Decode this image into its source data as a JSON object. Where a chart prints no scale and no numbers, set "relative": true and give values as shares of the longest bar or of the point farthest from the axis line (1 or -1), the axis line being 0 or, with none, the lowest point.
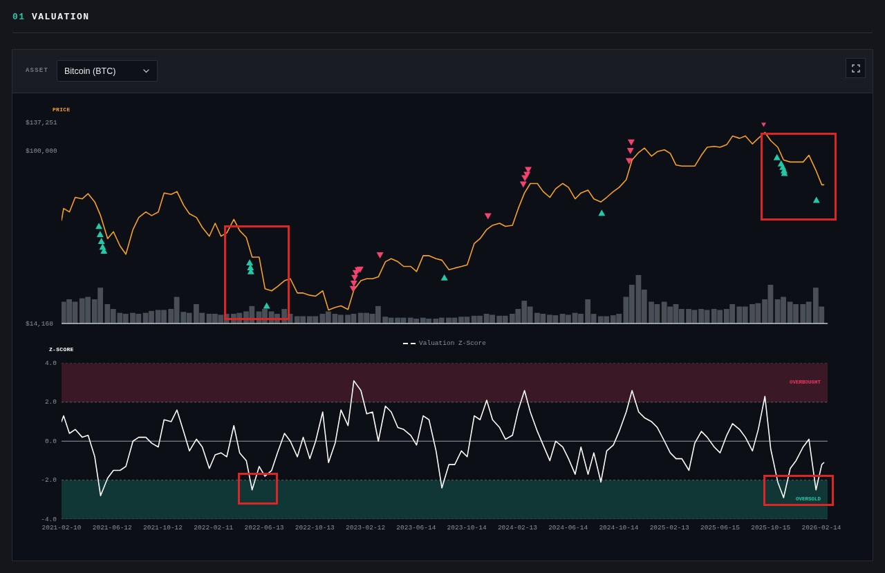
{
  "chart_data": [
    {
      "type": "line",
      "title": "01 VALUATION",
      "annotations": [
        "ASSET",
        "Bitcoin (BTC)"
      ],
      "ylabel": "PRICE",
      "log": true,
      "ylim": [
        14168,
        137251
      ],
      "yticks": [
        {
          "value": 14168,
          "label": "$14,168"
        },
        {
          "value": 100000,
          "label": "$100,000"
        },
        {
          "value": 137251,
          "label": "$137,251"
        }
      ],
      "xlim": [
        "2021-02-10",
        "2026-03-01"
      ],
      "tick_labels": "y",
      "x": [
        "2021-02-10",
        "2021-02-15",
        "2021-03-01",
        "2021-03-15",
        "2021-04-01",
        "2021-04-15",
        "2021-05-01",
        "2021-05-15",
        "2021-06-01",
        "2021-06-15",
        "2021-07-01",
        "2021-07-15",
        "2021-08-01",
        "2021-08-15",
        "2021-09-01",
        "2021-09-15",
        "2021-10-01",
        "2021-10-15",
        "2021-11-01",
        "2021-11-15",
        "2021-12-01",
        "2021-12-15",
        "2022-01-01",
        "2022-01-15",
        "2022-02-01",
        "2022-02-15",
        "2022-03-01",
        "2022-03-15",
        "2022-04-01",
        "2022-04-15",
        "2022-05-01",
        "2022-05-15",
        "2022-06-01",
        "2022-06-15",
        "2022-07-01",
        "2022-07-15",
        "2022-08-01",
        "2022-08-15",
        "2022-09-01",
        "2022-09-15",
        "2022-10-01",
        "2022-10-15",
        "2022-11-01",
        "2022-11-15",
        "2022-12-01",
        "2022-12-15",
        "2023-01-01",
        "2023-01-15",
        "2023-02-01",
        "2023-02-15",
        "2023-03-01",
        "2023-03-15",
        "2023-04-01",
        "2023-04-15",
        "2023-05-01",
        "2023-05-15",
        "2023-06-01",
        "2023-06-15",
        "2023-07-01",
        "2023-07-15",
        "2023-08-01",
        "2023-08-15",
        "2023-09-01",
        "2023-09-15",
        "2023-10-01",
        "2023-10-15",
        "2023-11-01",
        "2023-11-15",
        "2023-12-01",
        "2023-12-15",
        "2024-01-01",
        "2024-01-15",
        "2024-02-01",
        "2024-02-15",
        "2024-03-01",
        "2024-03-15",
        "2024-04-01",
        "2024-04-15",
        "2024-05-01",
        "2024-05-15",
        "2024-06-01",
        "2024-06-15",
        "2024-07-01",
        "2024-07-15",
        "2024-08-01",
        "2024-08-15",
        "2024-09-01",
        "2024-09-15",
        "2024-10-01",
        "2024-10-15",
        "2024-11-01",
        "2024-11-15",
        "2024-12-01",
        "2024-12-15",
        "2025-01-01",
        "2025-01-15",
        "2025-02-01",
        "2025-02-15",
        "2025-03-01",
        "2025-03-15",
        "2025-04-01",
        "2025-04-15",
        "2025-05-01",
        "2025-05-15",
        "2025-06-01",
        "2025-06-15",
        "2025-07-01",
        "2025-07-15",
        "2025-08-01",
        "2025-08-15",
        "2025-09-01",
        "2025-09-15",
        "2025-10-01",
        "2025-10-15",
        "2025-11-01",
        "2025-11-15",
        "2025-12-01",
        "2025-12-15",
        "2026-01-01",
        "2026-01-15",
        "2026-02-01",
        "2026-02-15",
        "2026-02-20"
      ],
      "series": [
        {
          "color": "#f7a226",
          "values": [
            45500,
            52000,
            50000,
            59000,
            58000,
            61500,
            56000,
            48000,
            37000,
            40000,
            34000,
            31000,
            41000,
            47000,
            50000,
            48000,
            50000,
            62000,
            61000,
            63000,
            54000,
            49000,
            47000,
            42000,
            38000,
            44000,
            38000,
            39500,
            46000,
            40500,
            37500,
            30000,
            30000,
            21000,
            20500,
            21500,
            23000,
            23500,
            20000,
            20000,
            19500,
            19300,
            20500,
            16500,
            17000,
            17300,
            16600,
            20700,
            23000,
            23500,
            23500,
            24000,
            28500,
            29500,
            28500,
            27000,
            27000,
            25500,
            30500,
            30500,
            29500,
            29000,
            26000,
            26500,
            27000,
            27500,
            35000,
            37000,
            41000,
            43000,
            44000,
            42500,
            43000,
            52000,
            62000,
            69000,
            69000,
            63000,
            59000,
            65000,
            69000,
            66000,
            58000,
            62000,
            64000,
            58000,
            56000,
            59000,
            63000,
            66000,
            72000,
            90000,
            98000,
            103000,
            94000,
            99000,
            101000,
            97000,
            85000,
            84000,
            84000,
            84000,
            95000,
            104000,
            105000,
            104000,
            107000,
            118000,
            115000,
            118000,
            108000,
            115000,
            123000,
            112000,
            104000,
            90000,
            88000,
            88000,
            88000,
            95000,
            80000,
            68000,
            68000
          ]
        },
        {
          "type": "scatter",
          "color": "#ef4470",
          "marker": "triangle-down",
          "x": [
            "2023-01-13",
            "2023-01-15",
            "2023-01-17",
            "2023-01-20",
            "2023-01-25",
            "2023-01-30",
            "2023-03-19",
            "2023-12-04",
            "2024-02-27",
            "2024-03-02",
            "2024-03-07",
            "2024-03-10",
            "2024-11-08",
            "2024-11-11",
            "2024-11-13",
            "2025-09-28"
          ],
          "values": [
            21000,
            22300,
            23800,
            25100,
            25900,
            26100,
            30700,
            47800,
            68400,
            73400,
            76300,
            80600,
            89100,
            100000,
            110000,
            136000
          ]
        },
        {
          "type": "scatter",
          "color": "#23c9a9",
          "marker": "triangle",
          "x": [
            "2021-05-11",
            "2021-05-14",
            "2021-05-17",
            "2021-05-20",
            "2021-05-23",
            "2022-05-09",
            "2022-05-11",
            "2022-05-12",
            "2022-06-19",
            "2023-08-21",
            "2024-09-03",
            "2025-10-30",
            "2025-11-09",
            "2025-11-13",
            "2025-11-16",
            "2025-11-17",
            "2026-02-02"
          ],
          "values": [
            42600,
            38800,
            35900,
            33700,
            32200,
            28200,
            26700,
            25500,
            17300,
            23800,
            49400,
            92700,
            86400,
            83100,
            79900,
            77500,
            57200
          ]
        }
      ]
    },
    {
      "type": "bar",
      "relative": true,
      "color": "#4a4e57",
      "xlim": [
        "2021-02-10",
        "2026-03-01"
      ],
      "tick_labels": false,
      "x": [
        "2021-02-15",
        "2021-03-01",
        "2021-03-15",
        "2021-04-01",
        "2021-04-15",
        "2021-05-01",
        "2021-05-15",
        "2021-06-01",
        "2021-06-15",
        "2021-07-01",
        "2021-07-15",
        "2021-08-01",
        "2021-08-15",
        "2021-09-01",
        "2021-09-15",
        "2021-10-01",
        "2021-10-15",
        "2021-11-01",
        "2021-11-15",
        "2021-12-01",
        "2021-12-15",
        "2022-01-01",
        "2022-01-15",
        "2022-02-01",
        "2022-02-15",
        "2022-03-01",
        "2022-03-15",
        "2022-04-01",
        "2022-04-15",
        "2022-05-01",
        "2022-05-15",
        "2022-06-01",
        "2022-06-15",
        "2022-07-01",
        "2022-07-15",
        "2022-08-01",
        "2022-08-15",
        "2022-09-01",
        "2022-09-15",
        "2022-10-01",
        "2022-10-15",
        "2022-11-01",
        "2022-11-15",
        "2022-12-01",
        "2022-12-15",
        "2023-01-01",
        "2023-01-15",
        "2023-02-01",
        "2023-02-15",
        "2023-03-01",
        "2023-03-15",
        "2023-04-01",
        "2023-04-15",
        "2023-05-01",
        "2023-05-15",
        "2023-06-01",
        "2023-06-15",
        "2023-07-01",
        "2023-07-15",
        "2023-08-01",
        "2023-08-15",
        "2023-09-01",
        "2023-09-15",
        "2023-10-01",
        "2023-10-15",
        "2023-11-01",
        "2023-11-15",
        "2023-12-01",
        "2023-12-15",
        "2024-01-01",
        "2024-01-15",
        "2024-02-01",
        "2024-02-15",
        "2024-03-01",
        "2024-03-15",
        "2024-04-01",
        "2024-04-15",
        "2024-05-01",
        "2024-05-15",
        "2024-06-01",
        "2024-06-15",
        "2024-07-01",
        "2024-07-15",
        "2024-08-01",
        "2024-08-15",
        "2024-09-01",
        "2024-09-15",
        "2024-10-01",
        "2024-10-15",
        "2024-11-01",
        "2024-11-15",
        "2024-12-01",
        "2024-12-15",
        "2025-01-01",
        "2025-01-15",
        "2025-02-01",
        "2025-02-15",
        "2025-03-01",
        "2025-03-15",
        "2025-04-01",
        "2025-04-15",
        "2025-05-01",
        "2025-05-15",
        "2025-06-01",
        "2025-06-15",
        "2025-07-01",
        "2025-07-15",
        "2025-08-01",
        "2025-08-15",
        "2025-09-01",
        "2025-09-15",
        "2025-10-01",
        "2025-10-15",
        "2025-11-01",
        "2025-11-15",
        "2025-12-01",
        "2025-12-15",
        "2026-01-01",
        "2026-01-15",
        "2026-02-01",
        "2026-02-15"
      ],
      "values": [
        0.45,
        0.5,
        0.45,
        0.52,
        0.55,
        0.5,
        0.74,
        0.4,
        0.3,
        0.22,
        0.2,
        0.22,
        0.2,
        0.22,
        0.26,
        0.28,
        0.28,
        0.3,
        0.55,
        0.24,
        0.22,
        0.4,
        0.22,
        0.2,
        0.2,
        0.18,
        0.2,
        0.2,
        0.22,
        0.25,
        0.36,
        0.25,
        0.3,
        0.25,
        0.2,
        0.3,
        0.2,
        0.15,
        0.15,
        0.15,
        0.15,
        0.2,
        0.25,
        0.2,
        0.18,
        0.18,
        0.2,
        0.22,
        0.22,
        0.2,
        0.36,
        0.14,
        0.12,
        0.12,
        0.12,
        0.12,
        0.1,
        0.12,
        0.1,
        0.1,
        0.12,
        0.12,
        0.12,
        0.14,
        0.14,
        0.16,
        0.16,
        0.2,
        0.18,
        0.16,
        0.16,
        0.2,
        0.3,
        0.47,
        0.35,
        0.22,
        0.2,
        0.18,
        0.17,
        0.2,
        0.18,
        0.22,
        0.2,
        0.5,
        0.2,
        0.15,
        0.15,
        0.17,
        0.2,
        0.55,
        0.8,
        1,
        0.7,
        0.45,
        0.4,
        0.45,
        0.35,
        0.4,
        0.3,
        0.3,
        0.28,
        0.3,
        0.28,
        0.3,
        0.28,
        0.3,
        0.4,
        0.35,
        0.35,
        0.4,
        0.42,
        0.5,
        0.8,
        0.5,
        0.55,
        0.45,
        0.4,
        0.4,
        0.45,
        0.74,
        0.35
      ]
    },
    {
      "type": "line",
      "ylabel": "Z-SCORE",
      "legend": "top",
      "ylim": [
        -4,
        4
      ],
      "yticks": [
        {
          "value": -4,
          "label": "-4.0"
        },
        {
          "value": -2,
          "label": "-2.0"
        },
        {
          "value": 0,
          "label": "0.0"
        },
        {
          "value": 2,
          "label": "2.0"
        },
        {
          "value": 4,
          "label": "4.0"
        }
      ],
      "xlim": [
        "2021-02-10",
        "2026-03-01"
      ],
      "xticks": [
        "2021-02-10",
        "2021-06-12",
        "2021-10-12",
        "2022-02-11",
        "2022-06-13",
        "2022-10-13",
        "2023-02-12",
        "2023-06-14",
        "2023-10-14",
        "2024-02-13",
        "2024-06-14",
        "2024-10-14",
        "2025-02-13",
        "2025-06-15",
        "2025-10-15",
        "2026-02-14"
      ],
      "bands": [
        {
          "axis": "y",
          "from": 2,
          "to": 4,
          "label": "OVERBOUGHT",
          "color": "#e33a5f"
        },
        {
          "axis": "y",
          "from": -4,
          "to": -2,
          "label": "OVERSOLD",
          "color": "#1fc8a8"
        }
      ],
      "ref_lines": [
        {
          "axis": "y",
          "value": 0,
          "color": "#9a9ea6"
        }
      ],
      "x": [
        "2021-02-10",
        "2021-02-15",
        "2021-03-01",
        "2021-03-15",
        "2021-04-01",
        "2021-04-15",
        "2021-05-01",
        "2021-05-15",
        "2021-06-01",
        "2021-06-15",
        "2021-07-01",
        "2021-07-15",
        "2021-08-01",
        "2021-08-15",
        "2021-09-01",
        "2021-09-15",
        "2021-10-01",
        "2021-10-15",
        "2021-11-01",
        "2021-11-15",
        "2021-12-01",
        "2021-12-15",
        "2022-01-01",
        "2022-01-15",
        "2022-02-01",
        "2022-02-15",
        "2022-03-01",
        "2022-03-15",
        "2022-04-01",
        "2022-04-15",
        "2022-05-01",
        "2022-05-15",
        "2022-06-01",
        "2022-06-15",
        "2022-07-01",
        "2022-07-15",
        "2022-08-01",
        "2022-08-15",
        "2022-09-01",
        "2022-09-15",
        "2022-10-01",
        "2022-10-15",
        "2022-11-01",
        "2022-11-15",
        "2022-12-01",
        "2022-12-15",
        "2023-01-01",
        "2023-01-15",
        "2023-02-01",
        "2023-02-15",
        "2023-03-01",
        "2023-03-15",
        "2023-04-01",
        "2023-04-15",
        "2023-05-01",
        "2023-05-15",
        "2023-06-01",
        "2023-06-15",
        "2023-07-01",
        "2023-07-15",
        "2023-08-01",
        "2023-08-15",
        "2023-09-01",
        "2023-09-15",
        "2023-10-01",
        "2023-10-15",
        "2023-11-01",
        "2023-11-15",
        "2023-12-01",
        "2023-12-15",
        "2024-01-01",
        "2024-01-15",
        "2024-02-01",
        "2024-02-15",
        "2024-03-01",
        "2024-03-15",
        "2024-04-01",
        "2024-04-15",
        "2024-05-01",
        "2024-05-15",
        "2024-06-01",
        "2024-06-15",
        "2024-07-01",
        "2024-07-15",
        "2024-08-01",
        "2024-08-15",
        "2024-09-01",
        "2024-09-15",
        "2024-10-01",
        "2024-10-15",
        "2024-11-01",
        "2024-11-15",
        "2024-12-01",
        "2024-12-15",
        "2025-01-01",
        "2025-01-15",
        "2025-02-01",
        "2025-02-15",
        "2025-03-01",
        "2025-03-15",
        "2025-04-01",
        "2025-04-15",
        "2025-05-01",
        "2025-05-15",
        "2025-06-01",
        "2025-06-15",
        "2025-07-01",
        "2025-07-15",
        "2025-08-01",
        "2025-08-15",
        "2025-09-01",
        "2025-09-15",
        "2025-10-01",
        "2025-10-15",
        "2025-11-01",
        "2025-11-15",
        "2025-12-01",
        "2025-12-15",
        "2026-01-01",
        "2026-01-15",
        "2026-02-01",
        "2026-02-15",
        "2026-02-20"
      ],
      "series": [
        {
          "name": "Valuation Z-Score",
          "color": "#ffffff",
          "values": [
            1.0,
            1.3,
            0.4,
            0.6,
            0.2,
            0.3,
            -0.8,
            -2.8,
            -1.9,
            -1.5,
            -1.5,
            -1.3,
            0.0,
            0.2,
            0.2,
            -0.1,
            -0.3,
            1.1,
            1.0,
            1.6,
            0.5,
            -0.5,
            0.1,
            -0.3,
            -1.4,
            -0.7,
            -0.6,
            -0.8,
            0.8,
            -0.6,
            -1.0,
            -2.5,
            -1.3,
            -1.8,
            -1.5,
            -0.6,
            0.4,
            0.0,
            -0.8,
            0.2,
            -0.9,
            0.0,
            1.5,
            -1.1,
            -0.1,
            1.6,
            0.8,
            3.1,
            2.6,
            1.4,
            1.5,
            0.0,
            1.8,
            1.5,
            0.7,
            0.6,
            0.3,
            -0.2,
            1.3,
            1.1,
            -0.5,
            -2.4,
            -1.2,
            -1.2,
            -0.5,
            -0.8,
            1.3,
            1.1,
            2.1,
            1.1,
            0.7,
            0.1,
            0.3,
            1.6,
            2.6,
            1.5,
            0.5,
            -0.2,
            -1.0,
            0.0,
            -0.3,
            -0.9,
            -1.7,
            -0.3,
            -1.7,
            -0.6,
            -2.1,
            -0.5,
            -0.2,
            0.5,
            1.5,
            2.6,
            1.5,
            1.2,
            1.0,
            0.7,
            0.0,
            -0.6,
            -0.9,
            -0.9,
            -1.5,
            -0.1,
            0.5,
            0.2,
            -0.3,
            -0.6,
            0.3,
            0.9,
            0.6,
            0.2,
            -0.5,
            0.6,
            2.3,
            -0.4,
            -2.1,
            -2.9,
            -1.4,
            -1.0,
            -0.3,
            0.1,
            -2.5,
            -1.2,
            -1.1
          ]
        }
      ]
    }
  ]
}
